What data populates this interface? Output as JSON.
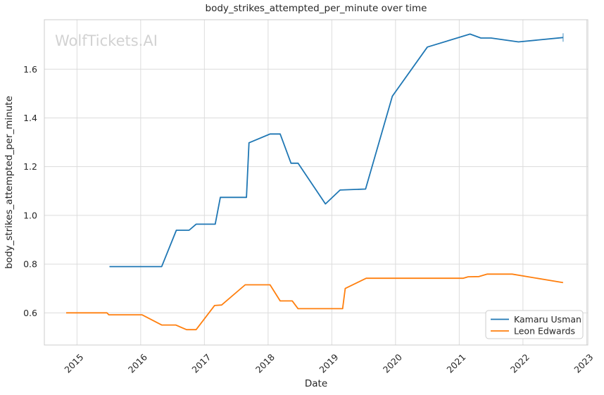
{
  "watermark": "WolfTickets.AI",
  "chart_data": {
    "type": "line",
    "title": "body_strikes_attempted_per_minute over time",
    "xlabel": "Date",
    "ylabel": "body_strikes_attempted_per_minute",
    "grid": true,
    "legend_position": "lower right",
    "xlim": [
      2014.488,
      2023.018
    ],
    "ylim": [
      0.468,
      1.803
    ],
    "x_ticks": [
      2015,
      2016,
      2017,
      2018,
      2019,
      2020,
      2021,
      2022,
      2023
    ],
    "y_ticks": [
      0.6,
      0.8,
      1.0,
      1.2,
      1.4,
      1.6
    ],
    "grid_color": "#dcdcdc",
    "spine_color": "#cccccc",
    "series": [
      {
        "name": "Kamaru Usman",
        "color": "#1f77b4",
        "end_marker": "vline",
        "points": [
          [
            2015.51,
            0.79
          ],
          [
            2016.33,
            0.79
          ],
          [
            2016.56,
            0.939
          ],
          [
            2016.76,
            0.939
          ],
          [
            2016.87,
            0.964
          ],
          [
            2017.17,
            0.964
          ],
          [
            2017.25,
            1.074
          ],
          [
            2017.66,
            1.074
          ],
          [
            2017.7,
            1.298
          ],
          [
            2018.03,
            1.334
          ],
          [
            2018.19,
            1.334
          ],
          [
            2018.36,
            1.214
          ],
          [
            2018.47,
            1.214
          ],
          [
            2018.9,
            1.047
          ],
          [
            2019.13,
            1.104
          ],
          [
            2019.53,
            1.108
          ],
          [
            2019.95,
            1.489
          ],
          [
            2020.5,
            1.691
          ],
          [
            2021.17,
            1.744
          ],
          [
            2021.34,
            1.728
          ],
          [
            2021.5,
            1.728
          ],
          [
            2021.93,
            1.712
          ],
          [
            2022.63,
            1.73
          ]
        ]
      },
      {
        "name": "Leon Edwards",
        "color": "#ff7f0e",
        "end_marker": "none",
        "points": [
          [
            2014.83,
            0.6
          ],
          [
            2015.47,
            0.6
          ],
          [
            2015.5,
            0.592
          ],
          [
            2016.02,
            0.592
          ],
          [
            2016.33,
            0.55
          ],
          [
            2016.55,
            0.55
          ],
          [
            2016.72,
            0.531
          ],
          [
            2016.87,
            0.531
          ],
          [
            2017.16,
            0.63
          ],
          [
            2017.27,
            0.632
          ],
          [
            2017.64,
            0.715
          ],
          [
            2018.03,
            0.715
          ],
          [
            2018.19,
            0.649
          ],
          [
            2018.38,
            0.649
          ],
          [
            2018.47,
            0.617
          ],
          [
            2019.17,
            0.617
          ],
          [
            2019.21,
            0.7
          ],
          [
            2019.54,
            0.742
          ],
          [
            2021.06,
            0.742
          ],
          [
            2021.14,
            0.748
          ],
          [
            2021.31,
            0.749
          ],
          [
            2021.44,
            0.759
          ],
          [
            2021.83,
            0.759
          ],
          [
            2022.63,
            0.724
          ]
        ]
      }
    ]
  }
}
